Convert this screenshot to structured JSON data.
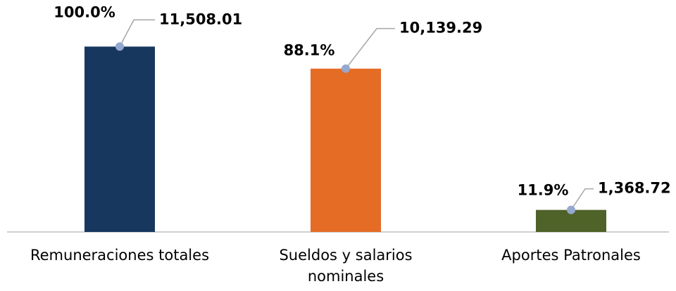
{
  "chart_data": {
    "type": "bar",
    "categories": [
      "Remuneraciones totales",
      "Sueldos y salarios nominales",
      "Aportes Patronales"
    ],
    "values": [
      11508.01,
      10139.29,
      1368.72
    ],
    "value_labels": [
      "11,508.01",
      "10,139.29",
      "1,368.72"
    ],
    "percent_labels": [
      "100.0%",
      "88.1%",
      "11.9%"
    ],
    "colors": [
      "#17375e",
      "#e46c25",
      "#4f6228"
    ],
    "ylim": [
      0,
      12000
    ]
  }
}
